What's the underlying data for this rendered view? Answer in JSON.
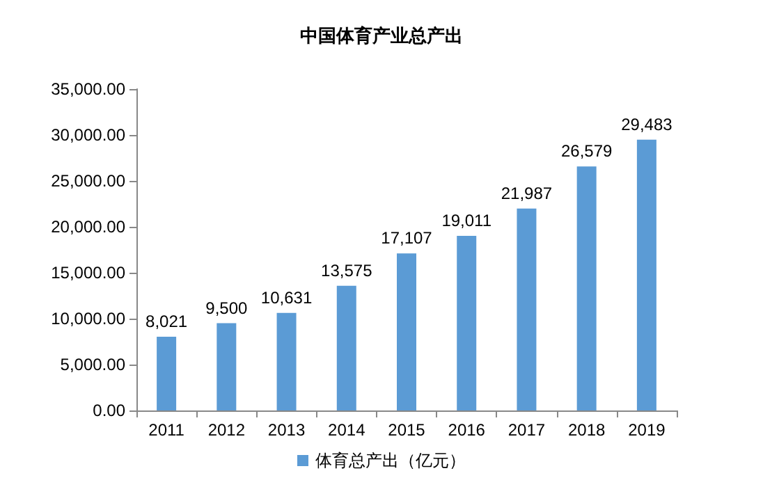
{
  "chart_data": {
    "type": "bar",
    "title": "中国体育产业总产出",
    "categories": [
      "2011",
      "2012",
      "2013",
      "2014",
      "2015",
      "2016",
      "2017",
      "2018",
      "2019"
    ],
    "series": [
      {
        "name": "体育总产出（亿元）",
        "color": "#5b9bd5",
        "values": [
          8021,
          9500,
          10631,
          13575,
          17107,
          19011,
          21987,
          26579,
          29483
        ],
        "value_labels": [
          "8,021",
          "9,500",
          "10,631",
          "13,575",
          "17,107",
          "19,011",
          "21,987",
          "26,579",
          "29,483"
        ]
      }
    ],
    "ylim": [
      0,
      35000
    ],
    "yticks": [
      {
        "value": 0,
        "label": "0.00"
      },
      {
        "value": 5000,
        "label": "5,000.00"
      },
      {
        "value": 10000,
        "label": "10,000.00"
      },
      {
        "value": 15000,
        "label": "15,000.00"
      },
      {
        "value": 20000,
        "label": "20,000.00"
      },
      {
        "value": 25000,
        "label": "25,000.00"
      },
      {
        "value": 30000,
        "label": "30,000.00"
      },
      {
        "value": 35000,
        "label": "35,000.00"
      }
    ],
    "grid": false,
    "legend": "bottom"
  }
}
